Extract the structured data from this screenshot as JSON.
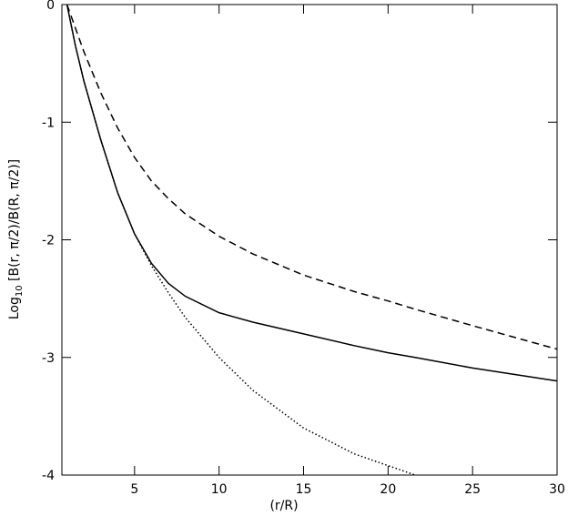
{
  "chart_data": {
    "type": "line",
    "xlabel": "(r/R)",
    "ylabel_parts": [
      "Log",
      "10",
      " [B(r, π/2)/B(R, π/2)]"
    ],
    "x": [
      1,
      1.5,
      2,
      3,
      4,
      5,
      6,
      7,
      8,
      10,
      12,
      15,
      18,
      20,
      21.6,
      25,
      30
    ],
    "series": [
      {
        "color": "#000000",
        "dash": "solid",
        "values": [
          0,
          -0.35,
          -0.65,
          -1.15,
          -1.6,
          -1.95,
          -2.2,
          -2.37,
          -2.48,
          -2.62,
          -2.7,
          -2.8,
          -2.9,
          -2.96,
          -3.0,
          -3.09,
          -3.2
        ]
      },
      {
        "color": "#000000",
        "dash": "dashed",
        "values": [
          0,
          -0.2,
          -0.4,
          -0.75,
          -1.05,
          -1.3,
          -1.5,
          -1.65,
          -1.78,
          -1.97,
          -2.12,
          -2.3,
          -2.44,
          -2.52,
          -2.59,
          -2.73,
          -2.93
        ]
      },
      {
        "color": "#000000",
        "dash": "dotted",
        "values": [
          0,
          -0.35,
          -0.65,
          -1.15,
          -1.6,
          -1.95,
          -2.22,
          -2.45,
          -2.66,
          -3.0,
          -3.28,
          -3.6,
          -3.82,
          -3.92,
          -4.0,
          null,
          null
        ]
      }
    ],
    "xlim": [
      0.7,
      30
    ],
    "xticks": [
      5,
      10,
      15,
      20,
      25,
      30
    ],
    "ylim": [
      -4,
      0
    ],
    "yticks": [
      0,
      -1,
      -2,
      -3,
      -4
    ],
    "grid": false
  }
}
